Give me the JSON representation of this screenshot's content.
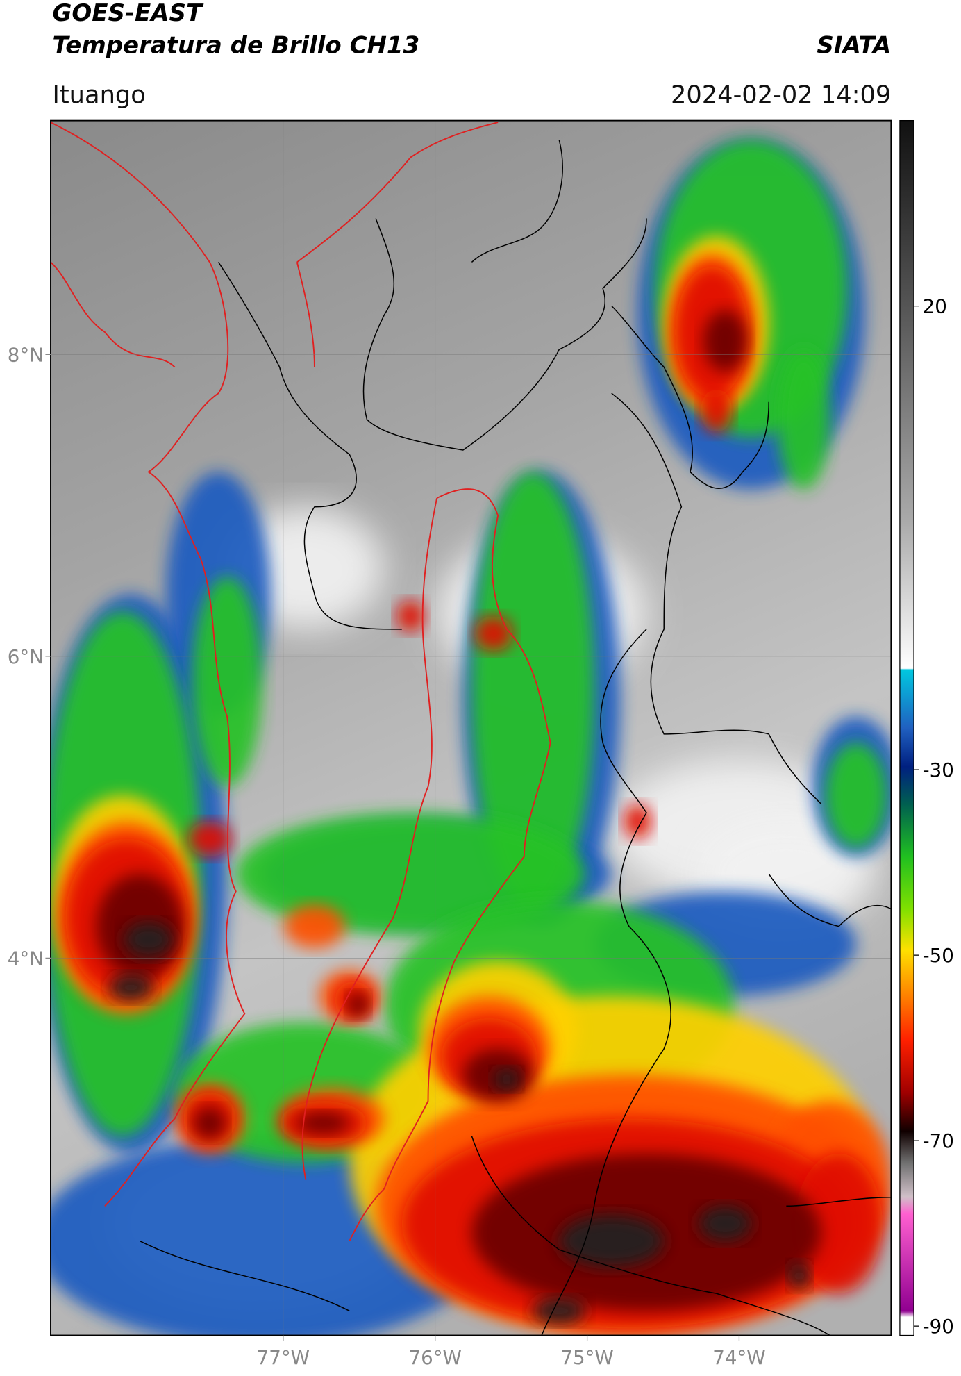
{
  "header": {
    "title": "GOES-EAST",
    "subtitle": "Temperatura de Brillo CH13",
    "agency": "SIATA",
    "location": "Ituango",
    "datetime": "2024-02-02 14:09"
  },
  "map": {
    "lonlim": [
      -78.53,
      -73.0
    ],
    "latlim": [
      1.5,
      9.55
    ],
    "lon_ticks": [
      {
        "value": -77,
        "label": "77°W"
      },
      {
        "value": -76,
        "label": "76°W"
      },
      {
        "value": -75,
        "label": "75°W"
      },
      {
        "value": -74,
        "label": "74°W"
      }
    ],
    "lat_ticks": [
      {
        "value": 8,
        "label": "8°N"
      },
      {
        "value": 6,
        "label": "6°N"
      },
      {
        "value": 4,
        "label": "4°N"
      }
    ]
  },
  "colorbar": {
    "lim": [
      -91,
      40
    ],
    "ticks": [
      20,
      -30,
      -50,
      -70,
      -90
    ]
  }
}
